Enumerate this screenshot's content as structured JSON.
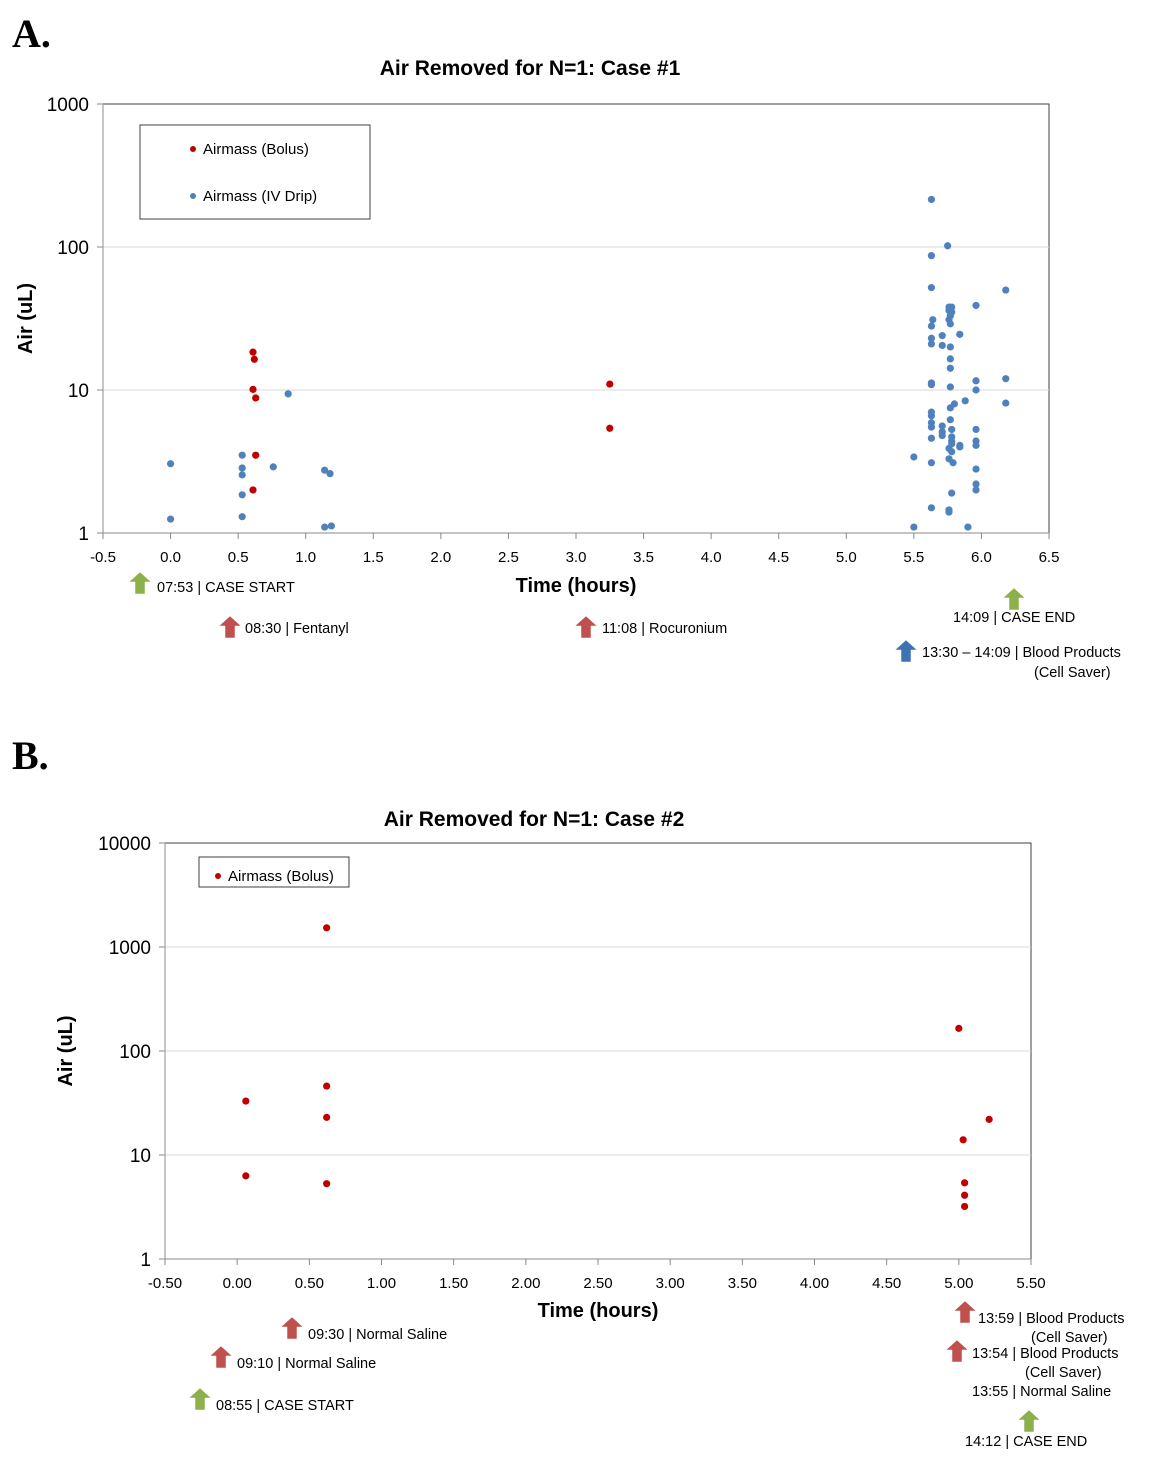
{
  "panels": [
    {
      "label": "A."
    },
    {
      "label": "B."
    }
  ],
  "colors": {
    "bolus": "#c00000",
    "iv_drip": "#4f81bd",
    "arrow_green": "#8db14a",
    "arrow_red": "#c0504d",
    "arrow_blue": "#3f72b5",
    "gridline": "#d9d9d9"
  },
  "chart_data": [
    {
      "type": "scatter",
      "title": "Air Removed for N=1: Case #1",
      "xlabel": "Time (hours)",
      "ylabel": "Air (uL)",
      "xlim": [
        -0.5,
        6.5
      ],
      "ylim": [
        1,
        1000
      ],
      "yscale": "log",
      "x_ticks": [
        "-0.5",
        "0.0",
        "0.5",
        "1.0",
        "1.5",
        "2.0",
        "2.5",
        "3.0",
        "3.5",
        "4.0",
        "4.5",
        "5.0",
        "5.5",
        "6.0",
        "6.5"
      ],
      "y_ticks": [
        "1",
        "10",
        "100",
        "1000"
      ],
      "grid": true,
      "legend_position": "top-left",
      "series": [
        {
          "name": "Airmass (Bolus)",
          "color": "#c00000",
          "points": [
            [
              0.61,
              18.4
            ],
            [
              0.62,
              16.4
            ],
            [
              0.61,
              10.1
            ],
            [
              0.63,
              8.8
            ],
            [
              0.63,
              3.5
            ],
            [
              0.61,
              2.0
            ],
            [
              3.25,
              11.0
            ],
            [
              3.25,
              5.4
            ]
          ]
        },
        {
          "name": "Airmass (IV Drip)",
          "color": "#4f81bd",
          "points": [
            [
              0.0,
              3.05
            ],
            [
              0.0,
              1.25
            ],
            [
              0.53,
              3.5
            ],
            [
              0.53,
              2.85
            ],
            [
              0.53,
              2.55
            ],
            [
              0.53,
              1.85
            ],
            [
              0.53,
              1.3
            ],
            [
              0.76,
              2.9
            ],
            [
              0.87,
              9.4
            ],
            [
              1.14,
              2.75
            ],
            [
              1.18,
              2.6
            ],
            [
              1.14,
              1.1
            ],
            [
              1.19,
              1.12
            ],
            [
              5.5,
              3.4
            ],
            [
              5.5,
              1.1
            ],
            [
              5.63,
              215
            ],
            [
              5.63,
              87
            ],
            [
              5.63,
              52
            ],
            [
              5.64,
              31
            ],
            [
              5.63,
              28
            ],
            [
              5.63,
              23
            ],
            [
              5.63,
              21
            ],
            [
              5.63,
              11.2
            ],
            [
              5.63,
              10.9
            ],
            [
              5.63,
              7.0
            ],
            [
              5.63,
              6.6
            ],
            [
              5.63,
              5.9
            ],
            [
              5.63,
              5.5
            ],
            [
              5.63,
              4.6
            ],
            [
              5.63,
              3.1
            ],
            [
              5.63,
              1.5
            ],
            [
              5.71,
              24
            ],
            [
              5.71,
              20.5
            ],
            [
              5.71,
              5.6
            ],
            [
              5.71,
              5.1
            ],
            [
              5.71,
              4.8
            ],
            [
              5.75,
              102
            ],
            [
              5.76,
              38
            ],
            [
              5.76,
              36
            ],
            [
              5.77,
              33
            ],
            [
              5.76,
              31
            ],
            [
              5.77,
              29
            ],
            [
              5.78,
              38
            ],
            [
              5.78,
              35
            ],
            [
              5.77,
              20
            ],
            [
              5.77,
              16.5
            ],
            [
              5.77,
              14.2
            ],
            [
              5.77,
              10.5
            ],
            [
              5.77,
              7.5
            ],
            [
              5.77,
              6.2
            ],
            [
              5.78,
              5.3
            ],
            [
              5.78,
              4.7
            ],
            [
              5.78,
              4.4
            ],
            [
              5.78,
              4.2
            ],
            [
              5.76,
              3.9
            ],
            [
              5.78,
              3.7
            ],
            [
              5.76,
              3.3
            ],
            [
              5.79,
              3.1
            ],
            [
              5.78,
              1.9
            ],
            [
              5.76,
              1.45
            ],
            [
              5.76,
              1.4
            ],
            [
              5.8,
              8.0
            ],
            [
              5.84,
              24.5
            ],
            [
              5.84,
              4.1
            ],
            [
              5.84,
              4.0
            ],
            [
              5.88,
              8.4
            ],
            [
              5.9,
              1.1
            ],
            [
              5.96,
              39
            ],
            [
              5.96,
              11.6
            ],
            [
              5.96,
              10
            ],
            [
              5.96,
              5.3
            ],
            [
              5.96,
              4.4
            ],
            [
              5.96,
              4.1
            ],
            [
              5.96,
              2.8
            ],
            [
              5.96,
              2.2
            ],
            [
              5.96,
              2.0
            ],
            [
              6.18,
              50
            ],
            [
              6.18,
              12
            ],
            [
              6.18,
              8.1
            ]
          ]
        }
      ],
      "annotations": [
        {
          "text": "07:53 | CASE START",
          "arrow": "green",
          "x": -0.25
        },
        {
          "text": "08:30 | Fentanyl",
          "arrow": "red",
          "x": 0.43
        },
        {
          "text": "11:08 | Rocuronium",
          "arrow": "red",
          "x": 3.05
        },
        {
          "text": "14:09 | CASE END",
          "arrow": "green",
          "x": 6.25
        },
        {
          "text": "13:30 – 14:09 | Blood Products",
          "text2": "(Cell Saver)",
          "arrow": "blue",
          "x": 5.45
        }
      ]
    },
    {
      "type": "scatter",
      "title": "Air Removed for N=1: Case #2",
      "xlabel": "Time (hours)",
      "ylabel": "Air (uL)",
      "xlim": [
        -0.5,
        5.5
      ],
      "ylim": [
        1,
        10000
      ],
      "yscale": "log",
      "x_ticks": [
        "-0.50",
        "0.00",
        "0.50",
        "1.00",
        "1.50",
        "2.00",
        "2.50",
        "3.00",
        "3.50",
        "4.00",
        "4.50",
        "5.00",
        "5.50"
      ],
      "y_ticks": [
        "1",
        "10",
        "100",
        "1000",
        "10000"
      ],
      "grid": true,
      "legend_position": "top-left",
      "series": [
        {
          "name": "Airmass (Bolus)",
          "color": "#c00000",
          "points": [
            [
              0.06,
              33
            ],
            [
              0.06,
              6.3
            ],
            [
              0.62,
              1530
            ],
            [
              0.62,
              46
            ],
            [
              0.62,
              23
            ],
            [
              0.62,
              5.3
            ],
            [
              5.0,
              165
            ],
            [
              5.03,
              14
            ],
            [
              5.04,
              5.4
            ],
            [
              5.04,
              4.1
            ],
            [
              5.04,
              3.2
            ],
            [
              5.21,
              22
            ]
          ]
        }
      ],
      "annotations": [
        {
          "text": "09:30 | Normal Saline",
          "arrow": "red",
          "x": 0.38
        },
        {
          "text": "09:10 | Normal Saline",
          "arrow": "red",
          "x": -0.1
        },
        {
          "text": "08:55 | CASE START",
          "arrow": "green",
          "x": -0.25
        },
        {
          "text": "13:59 | Blood Products",
          "text2": "(Cell Saver)",
          "arrow": "red",
          "x": 5.05
        },
        {
          "text": "13:54 | Blood Products",
          "text2": "(Cell Saver)",
          "arrow": "red",
          "x": 5.0
        },
        {
          "text": "13:55 | Normal Saline",
          "arrow": "none",
          "x": 5.25
        },
        {
          "text": "14:12 | CASE END",
          "arrow": "green",
          "x": 5.3
        }
      ]
    }
  ]
}
